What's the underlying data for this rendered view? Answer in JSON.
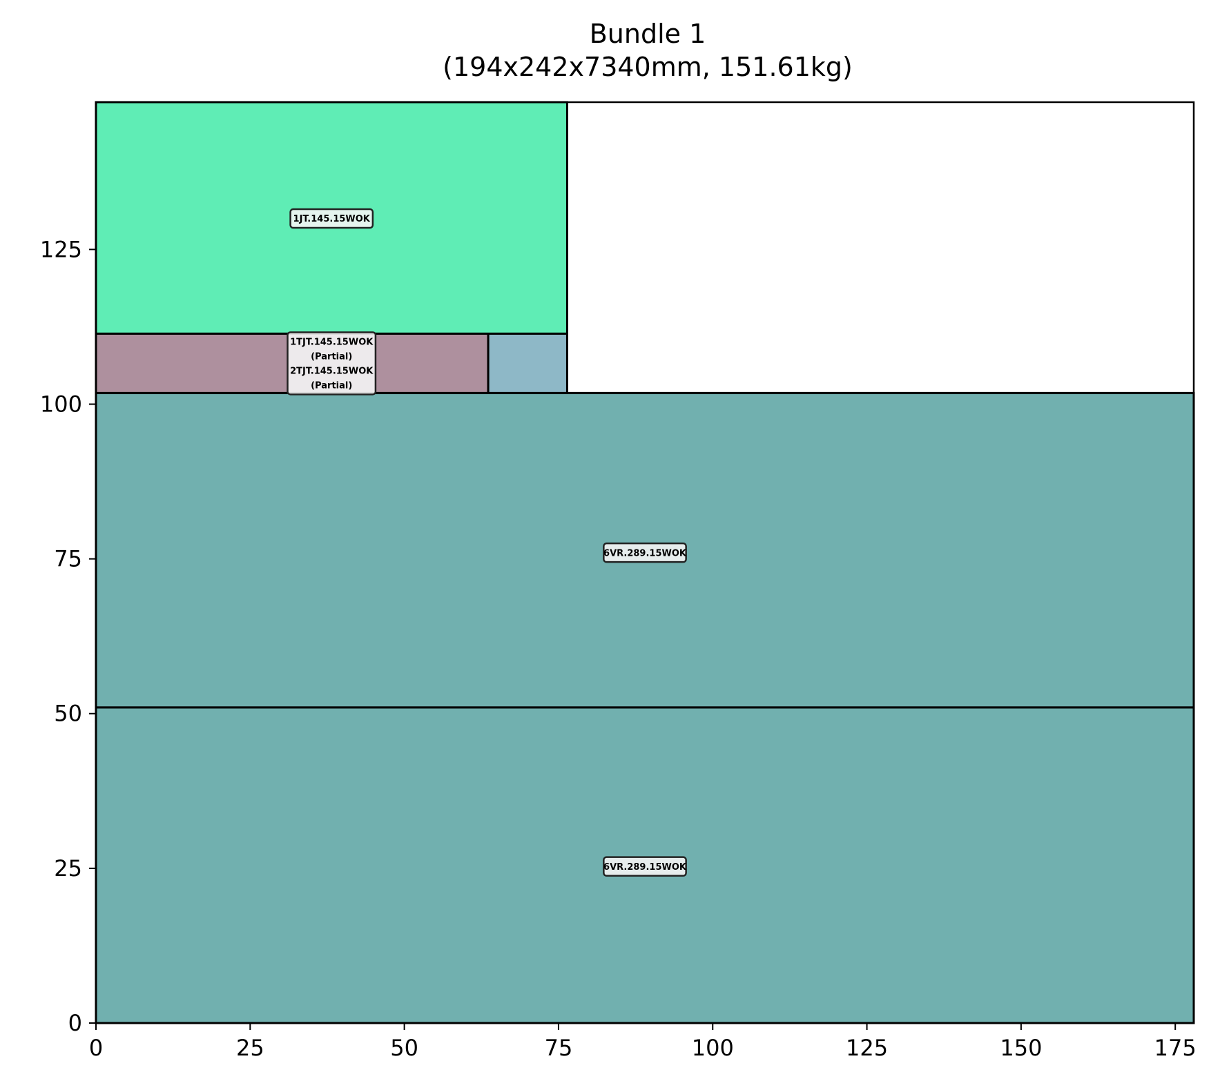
{
  "chart_data": {
    "type": "rectangle-layout",
    "title": "Bundle 1",
    "subtitle": "(194x242x7340mm, 151.61kg)",
    "xlabel": "",
    "ylabel": "",
    "xlim": [
      0,
      178
    ],
    "ylim": [
      0,
      148.8
    ],
    "xticks": [
      0,
      25,
      50,
      75,
      100,
      125,
      150,
      175
    ],
    "yticks": [
      0,
      25,
      50,
      75,
      100,
      125
    ],
    "grid": false,
    "rects": [
      {
        "x": 0,
        "y": 0,
        "w": 178,
        "h": 51,
        "color": "#71b0af"
      },
      {
        "x": 0,
        "y": 51,
        "w": 178,
        "h": 50.8,
        "color": "#71b0af"
      },
      {
        "x": 0,
        "y": 101.8,
        "w": 63.6,
        "h": 9.6,
        "color": "#ae909e"
      },
      {
        "x": 63.6,
        "y": 101.8,
        "w": 12.8,
        "h": 9.6,
        "color": "#8eb8c7"
      },
      {
        "x": 0,
        "y": 111.4,
        "w": 76.4,
        "h": 38.2,
        "color": "#5fedb5"
      }
    ],
    "labels": [
      {
        "x": 38.2,
        "y": 130,
        "lines": [
          "1JT.145.15WOK"
        ]
      },
      {
        "x": 38.2,
        "y": 106.6,
        "lines": [
          "1TJT.145.15WOK",
          "(Partial)",
          "2TJT.145.15WOK",
          "(Partial)"
        ]
      },
      {
        "x": 89,
        "y": 76,
        "lines": [
          "6VR.289.15WOK"
        ]
      },
      {
        "x": 89,
        "y": 25.3,
        "lines": [
          "6VR.289.15WOK"
        ]
      }
    ]
  }
}
